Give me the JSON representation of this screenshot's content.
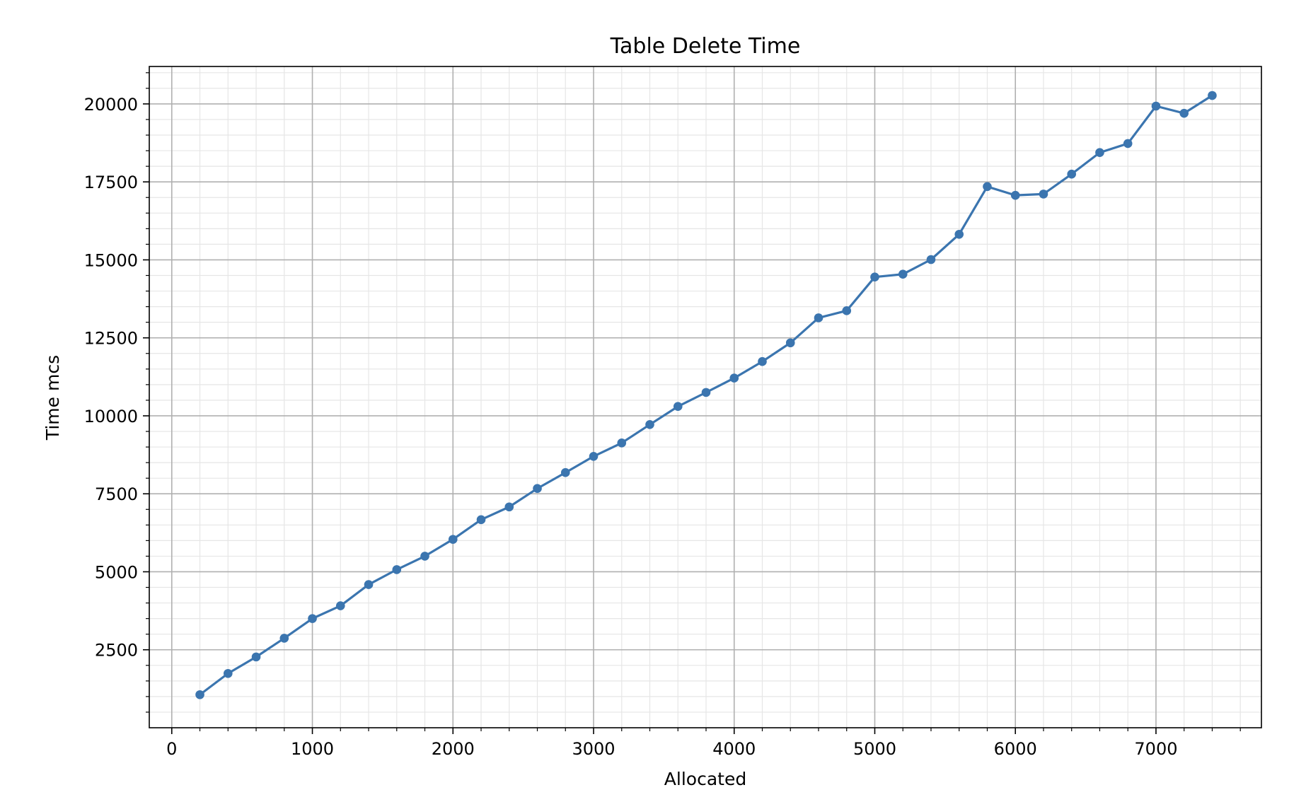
{
  "chart_data": {
    "type": "line",
    "title": "Table Delete Time",
    "xlabel": "Allocated",
    "ylabel": "Time mcs",
    "xlim": [
      -160,
      7750
    ],
    "ylim": [
      0,
      21200
    ],
    "x_ticks": [
      0,
      1000,
      2000,
      3000,
      4000,
      5000,
      6000,
      7000
    ],
    "x_tick_labels": [
      "0",
      "1000",
      "2000",
      "3000",
      "4000",
      "5000",
      "6000",
      "7000"
    ],
    "x_minor_step": 200,
    "y_ticks": [
      2500,
      5000,
      7500,
      10000,
      12500,
      15000,
      17500,
      20000
    ],
    "y_tick_labels": [
      "2500",
      "5000",
      "7500",
      "10000",
      "12500",
      "15000",
      "17500",
      "20000"
    ],
    "y_minor_step": 500,
    "grid": true,
    "minor_grid": true,
    "legend": "none",
    "series": [
      {
        "color": "#3b75af",
        "marker": "circle",
        "x": [
          200,
          400,
          600,
          800,
          1000,
          1200,
          1400,
          1600,
          1800,
          2000,
          2200,
          2400,
          2600,
          2800,
          3000,
          3200,
          3400,
          3600,
          3800,
          4000,
          4200,
          4400,
          4600,
          4800,
          5000,
          5200,
          5400,
          5600,
          5800,
          6000,
          6200,
          6400,
          6600,
          6800,
          7000,
          7200,
          7400
        ],
        "y": [
          1060,
          1740,
          2270,
          2870,
          3500,
          3910,
          4590,
          5070,
          5500,
          6040,
          6670,
          7080,
          7670,
          8180,
          8700,
          9130,
          9720,
          10300,
          10750,
          11210,
          11740,
          12340,
          13140,
          13370,
          14450,
          14540,
          15010,
          15820,
          17350,
          17070,
          17110,
          17750,
          18440,
          18730,
          19930,
          19700,
          20270
        ]
      }
    ]
  },
  "colors": {
    "line": "#3b75af",
    "major_grid": "#b0b0b0",
    "minor_grid": "#e6e6e6",
    "axes": "#000000",
    "background": "#ffffff"
  }
}
